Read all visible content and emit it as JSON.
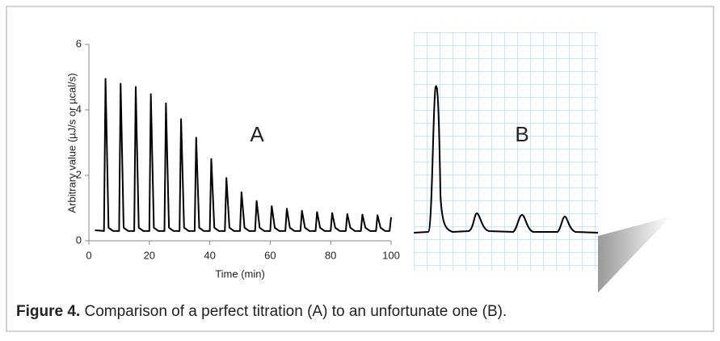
{
  "chart_data": {
    "type": "line",
    "y_label": "Arbitrary value (µJ/s or µcal/s)",
    "x_label": "Time (min)",
    "annotations": [
      "A"
    ],
    "x": [
      2,
      5,
      5.5,
      6.5,
      8,
      10,
      10.5,
      11.5,
      13,
      15,
      15.5,
      16.5,
      18,
      20,
      20.5,
      21.5,
      23,
      25,
      25.5,
      26.5,
      28,
      30,
      30.5,
      31.5,
      33,
      35,
      35.5,
      36.5,
      38,
      40,
      40.5,
      41.5,
      43,
      45,
      45.5,
      46.5,
      48,
      50,
      50.5,
      51.5,
      53,
      55,
      55.5,
      56.5,
      58,
      60,
      60.5,
      61.5,
      63,
      65,
      65.5,
      66.5,
      68,
      70,
      70.5,
      71.5,
      73,
      75,
      75.5,
      76.5,
      78,
      80,
      80.5,
      81.5,
      83,
      85,
      85.5,
      86.5,
      88,
      90,
      90.5,
      91.5,
      93,
      95,
      95.5,
      96.5,
      98,
      99.5,
      100
    ],
    "series": [
      {
        "color": "#000000",
        "values": [
          0.32,
          0.3,
          4.95,
          0.4,
          0.3,
          0.3,
          4.8,
          0.4,
          0.3,
          0.3,
          4.7,
          0.4,
          0.3,
          0.3,
          4.48,
          0.4,
          0.3,
          0.3,
          4.2,
          0.4,
          0.3,
          0.3,
          3.72,
          0.4,
          0.3,
          0.3,
          3.15,
          0.4,
          0.3,
          0.3,
          2.5,
          0.4,
          0.3,
          0.3,
          1.92,
          0.4,
          0.3,
          0.3,
          1.48,
          0.4,
          0.3,
          0.3,
          1.22,
          0.4,
          0.3,
          0.3,
          1.06,
          0.4,
          0.3,
          0.3,
          0.98,
          0.4,
          0.3,
          0.3,
          0.92,
          0.4,
          0.3,
          0.3,
          0.88,
          0.4,
          0.3,
          0.3,
          0.85,
          0.4,
          0.3,
          0.3,
          0.82,
          0.4,
          0.3,
          0.3,
          0.8,
          0.4,
          0.3,
          0.3,
          0.78,
          0.4,
          0.3,
          0.3,
          0.72
        ]
      }
    ],
    "xlim": [
      0,
      100
    ],
    "xticks": [
      0,
      20,
      40,
      60,
      80,
      100
    ],
    "ylim": [
      0,
      6
    ],
    "yticks": [
      0,
      2,
      4,
      6
    ]
  },
  "panel_b": {
    "label": "B"
  },
  "caption": {
    "label": "Figure 4.",
    "text": " Comparison of a perfect titration (A) to an unfortunate one (B)."
  }
}
